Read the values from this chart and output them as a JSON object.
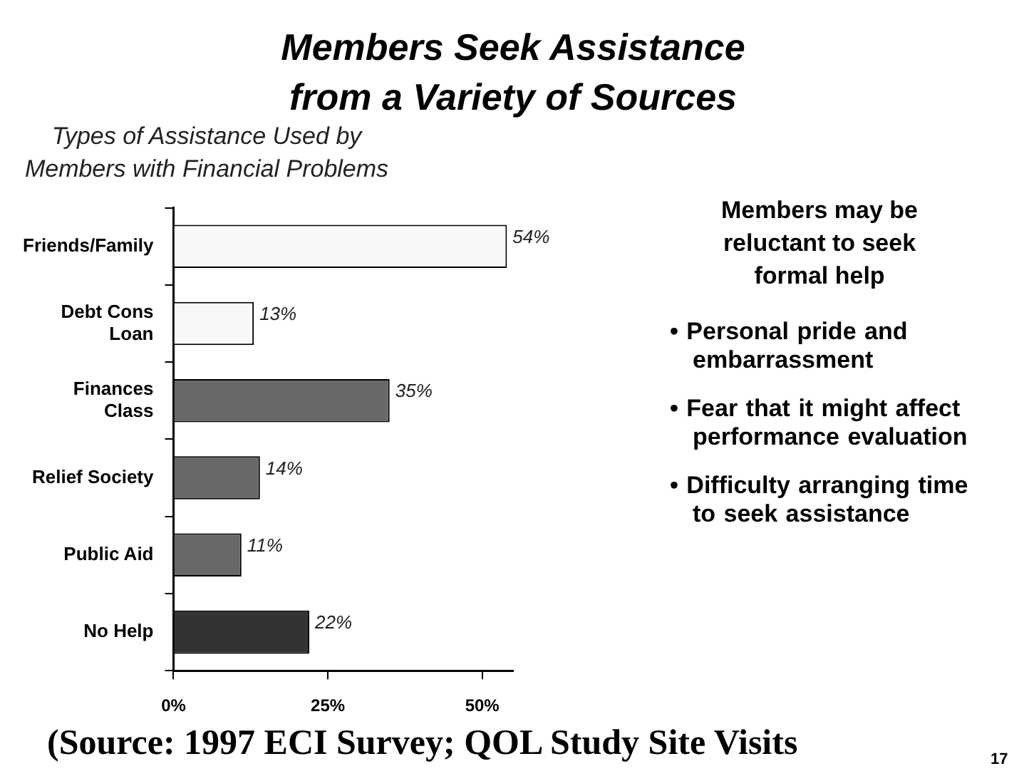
{
  "chart_data": {
    "type": "bar",
    "orientation": "horizontal",
    "title": "Members Seek Assistance\nfrom a Variety of Sources",
    "subtitle": "Types of Assistance Used by\nMembers with Financial Problems",
    "categories": [
      "Friends/Family",
      "Debt Cons\nLoan",
      "Finances\nClass",
      "Relief Society",
      "Public Aid",
      "No Help"
    ],
    "values": [
      54,
      13,
      35,
      14,
      11,
      22
    ],
    "colors": [
      "#f8f8f8",
      "#f8f8f8",
      "#686868",
      "#686868",
      "#686868",
      "#333333"
    ],
    "value_labels": [
      "54%",
      "13%",
      "35%",
      "14%",
      "11%",
      "22%"
    ],
    "xlim": [
      0,
      55
    ],
    "xticks": [
      {
        "value": 0,
        "label": "0%"
      },
      {
        "value": 25,
        "label": "25%"
      },
      {
        "value": 50,
        "label": "50%"
      }
    ],
    "grid": false,
    "legend": false,
    "annotations": [
      "Members may be reluctant to seek formal help",
      "• Personal pride and embarrassment",
      "• Fear that it might affect performance evaluation",
      "• Difficulty arranging time to seek assistance",
      "(Source:  1997 ECI Survey; QOL Study Site Visits",
      "17"
    ]
  }
}
